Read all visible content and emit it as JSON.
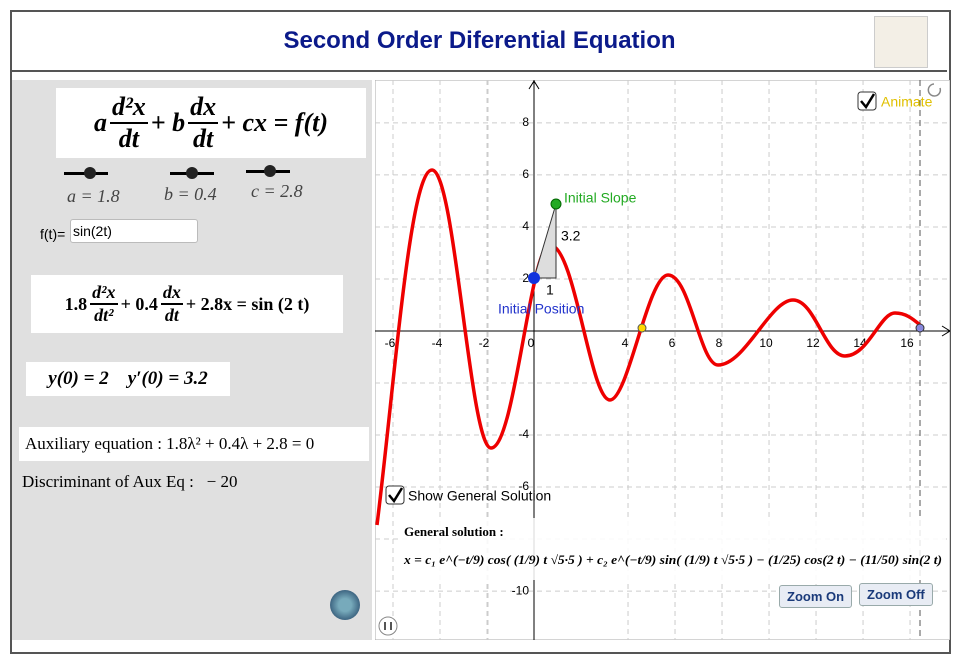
{
  "header": {
    "title": "Second Order Diferential Equation"
  },
  "left": {
    "equation": {
      "a": "a",
      "num1": "d²x",
      "den1": "dt",
      "b": "+ b",
      "num2": "dx",
      "den2": "dt",
      "rest": "+ cx = f(t)"
    },
    "sliders": [
      "a = 1.8",
      "b = 0.4",
      "c = 2.8"
    ],
    "ft_label": "f(t)=",
    "ft_value": "sin(2t)",
    "specific": {
      "a": "1.8",
      "num1": "d²x",
      "den1": "dt²",
      "b": "+ 0.4",
      "num2": "dx",
      "den2": "dt",
      "rest": "+ 2.8x = sin (2 t)"
    },
    "initial": "y(0) = 2    y′(0) = 3.2",
    "aux_label": "Auxiliary equation :",
    "aux_eq": "1.8λ² + 0.4λ + 2.8 = 0",
    "disc_label": "Discriminant of Aux Eq :",
    "disc_value": "− 20"
  },
  "graph": {
    "xlim": [
      -6.766,
      17.7
    ],
    "ylim": [
      -11.88,
      9.65
    ],
    "xticks": [
      -6,
      -4,
      -2,
      0,
      4,
      6,
      8,
      10,
      12,
      14,
      16
    ],
    "yticks": [
      8,
      6,
      4,
      2,
      -4,
      -6,
      -10
    ],
    "initial_slope": "Initial Slope",
    "initial_position": "Initial Position",
    "run": "1",
    "rise": "3.2",
    "animate": "Animate",
    "show_general": "Show General Solution",
    "general_title": "General solution :",
    "general_formula": "x = c₁ e^(−t/9) cos( (1/9) t √5·5 ) + c₂ e^(−t/9) sin( (1/9) t √5·5 ) − (1/25) cos(2 t) − (11/50) sin(2 t)",
    "zoom_on": "Zoom On",
    "zoom_off": "Zoom Off"
  }
}
